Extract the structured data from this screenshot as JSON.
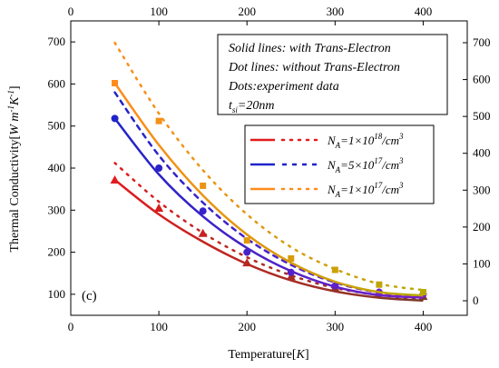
{
  "chart_data": {
    "type": "line",
    "panel_label": "(c)",
    "xlabel": "Temperature[K]",
    "ylabel": "Thermal Conductivity[W m-1K-1]",
    "xlim": [
      0,
      450
    ],
    "ylim": [
      50,
      750
    ],
    "x_ticks": [
      0,
      100,
      200,
      300,
      400
    ],
    "y_ticks_left": [
      100,
      200,
      300,
      400,
      500,
      600,
      700
    ],
    "y_ticks_right": [
      0,
      100,
      200,
      300,
      400,
      500,
      600,
      700
    ],
    "x_ticks_top": [
      0,
      100,
      200,
      300,
      400
    ],
    "notes": [
      "Solid lines: with Trans-Electron",
      "Dot lines: without Trans-Electron",
      "Dots:experiment data",
      "tsi=20nm"
    ],
    "legend": [
      {
        "label": "NA=1×1018/cm3",
        "color": "#e41a1c"
      },
      {
        "label": "NA=5×1017/cm3",
        "color": "#1f24c8"
      },
      {
        "label": "NA=1×1017/cm3",
        "color": "#ff8c1a"
      }
    ],
    "x": [
      50,
      100,
      150,
      200,
      250,
      300,
      350,
      400
    ],
    "series": [
      {
        "name": "NA=1×1018/cm3",
        "color_start": "#e41a1c",
        "color_end": "#7a3a2a",
        "marker": "triangle",
        "experiment": [
          372,
          305,
          245,
          175,
          142,
          115,
          103,
          95
        ],
        "solid": [
          372,
          290,
          225,
          172,
          133,
          107,
          92,
          85
        ],
        "dotted": [
          412,
          320,
          246,
          188,
          145,
          115,
          98,
          88
        ]
      },
      {
        "name": "NA=5×1017/cm3",
        "color_start": "#1f24c8",
        "color_end": "#7a1fc8",
        "marker": "circle",
        "experiment": [
          518,
          400,
          298,
          200,
          152,
          120,
          105,
          100
        ],
        "solid": [
          518,
          385,
          285,
          210,
          155,
          118,
          98,
          92
        ],
        "dotted": [
          580,
          430,
          318,
          232,
          170,
          128,
          104,
          95
        ]
      },
      {
        "name": "NA=1×1017/cm3",
        "color_start": "#ff8c1a",
        "color_end": "#b8a800",
        "marker": "square",
        "experiment": [
          602,
          512,
          358,
          228,
          185,
          158,
          123,
          105
        ],
        "solid": [
          602,
          455,
          335,
          242,
          175,
          130,
          105,
          97
        ],
        "dotted": [
          698,
          530,
          395,
          290,
          212,
          160,
          125,
          110
        ]
      }
    ]
  }
}
